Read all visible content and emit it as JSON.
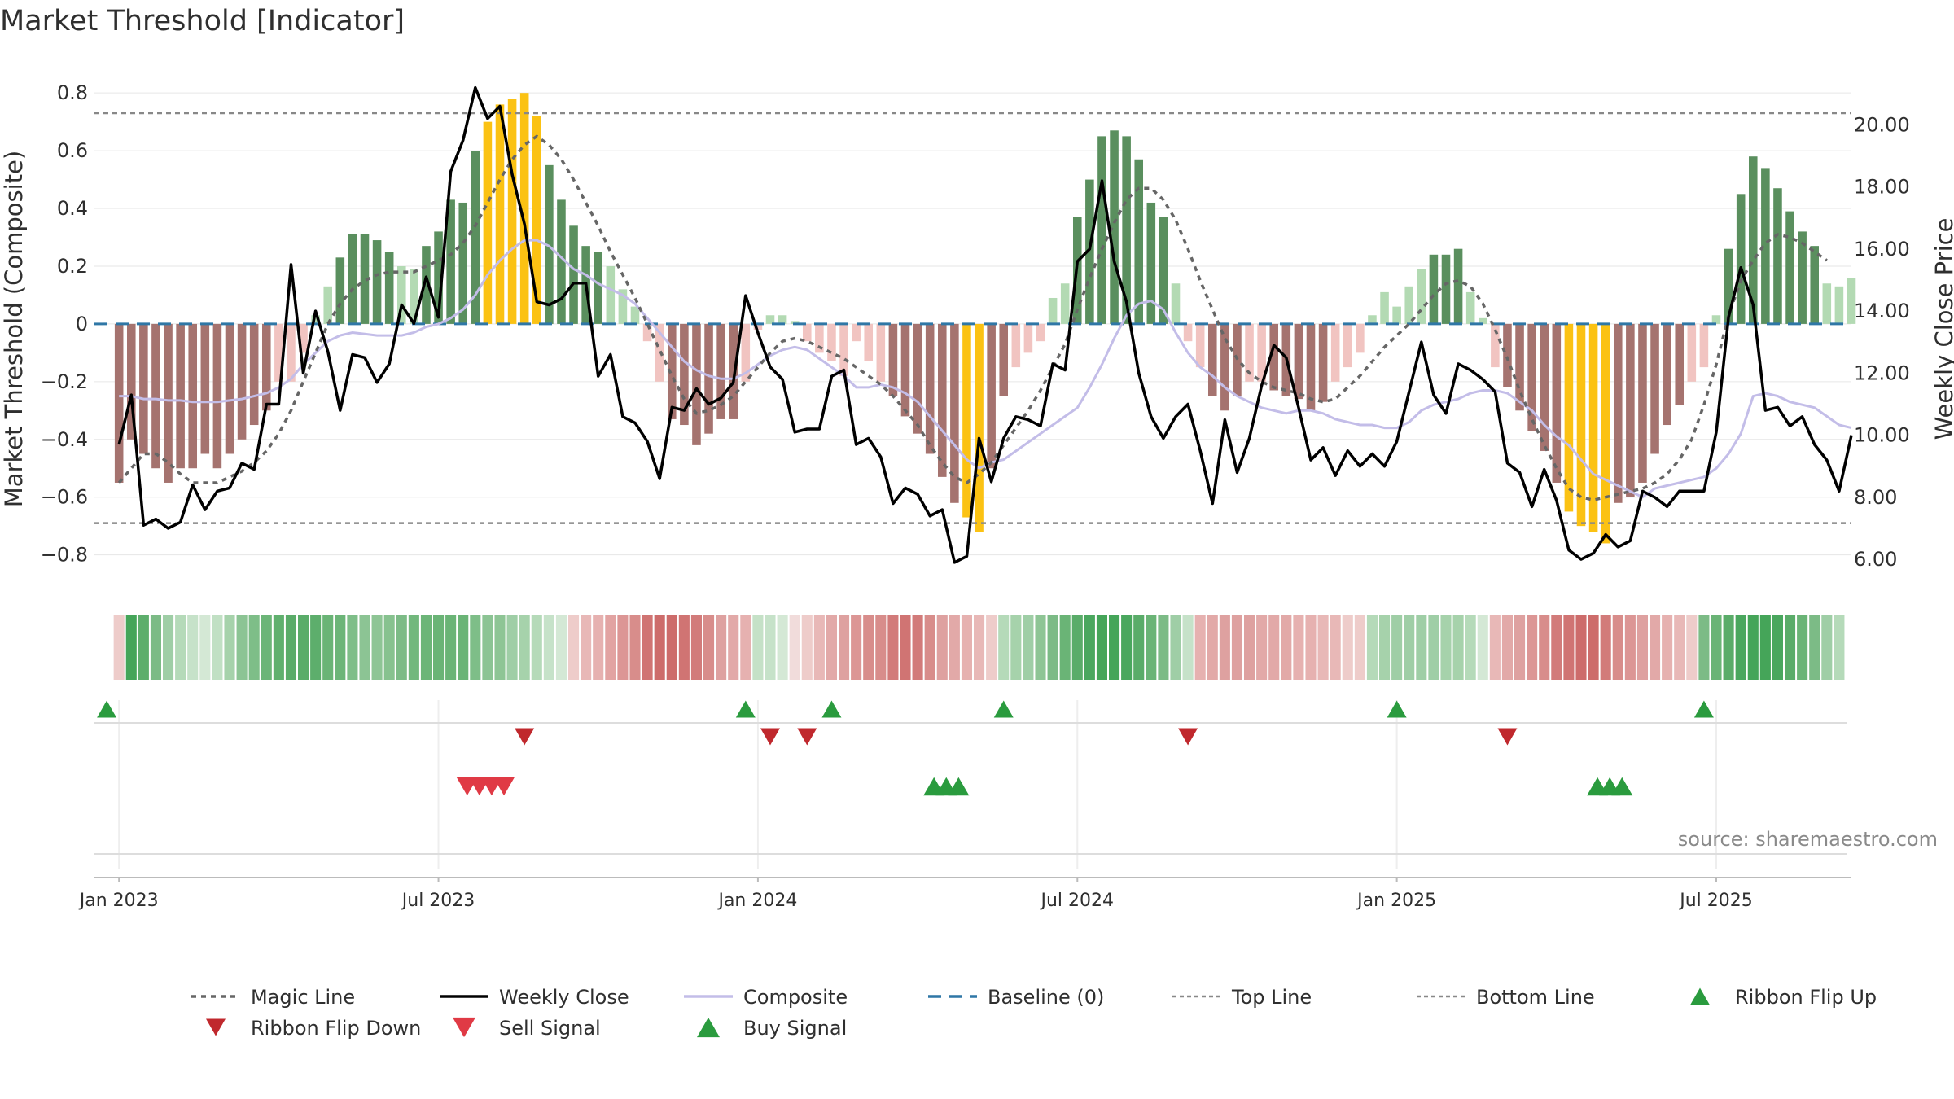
{
  "chart_data": {
    "type": "bar+line",
    "title": "Market Threshold [Indicator]",
    "ylabel_left": "Market Threshold (Composite)",
    "ylabel_right": "Weekly Close Price",
    "ylim_left": [
      -0.88,
      0.84
    ],
    "ylim_right": [
      5.4,
      21.4
    ],
    "left_ticks": [
      "0.8",
      "0.6",
      "0.4",
      "0.2",
      "0",
      "−0.2",
      "−0.4",
      "−0.6",
      "−0.8"
    ],
    "left_tick_values": [
      0.8,
      0.6,
      0.4,
      0.2,
      0,
      -0.2,
      -0.4,
      -0.6,
      -0.8
    ],
    "right_ticks": [
      "20.00",
      "18.00",
      "16.00",
      "14.00",
      "12.00",
      "10.00",
      "8.00",
      "6.00"
    ],
    "right_tick_values": [
      20,
      18,
      16,
      14,
      12,
      10,
      8,
      6
    ],
    "x_labels": [
      "Jan 2023",
      "Jul 2023",
      "Jan 2024",
      "Jul 2024",
      "Jan 2025",
      "Jul 2025"
    ],
    "x_label_weeks": [
      0,
      26,
      52,
      78,
      104,
      130
    ],
    "x_start_week": -2,
    "x_end_week": 141,
    "top_line": 0.73,
    "bottom_line": -0.69,
    "baseline": 0,
    "composite_bars": [
      -0.55,
      -0.4,
      -0.45,
      -0.5,
      -0.55,
      -0.5,
      -0.5,
      -0.45,
      -0.5,
      -0.45,
      -0.4,
      -0.35,
      -0.3,
      -0.2,
      -0.2,
      -0.1,
      0.03,
      0.13,
      0.23,
      0.31,
      0.31,
      0.29,
      0.25,
      0.2,
      0.19,
      0.27,
      0.32,
      0.43,
      0.42,
      0.6,
      0.7,
      0.76,
      0.78,
      0.8,
      0.72,
      0.55,
      0.43,
      0.34,
      0.27,
      0.25,
      0.2,
      0.12,
      0.06,
      -0.06,
      -0.2,
      -0.33,
      -0.35,
      -0.42,
      -0.38,
      -0.33,
      -0.33,
      -0.2,
      -0.02,
      0.03,
      0.03,
      0.01,
      -0.06,
      -0.1,
      -0.13,
      -0.18,
      -0.06,
      -0.13,
      -0.2,
      -0.25,
      -0.32,
      -0.38,
      -0.45,
      -0.53,
      -0.62,
      -0.67,
      -0.72,
      -0.5,
      -0.25,
      -0.15,
      -0.1,
      -0.06,
      0.09,
      0.14,
      0.37,
      0.5,
      0.65,
      0.67,
      0.65,
      0.57,
      0.42,
      0.37,
      0.14,
      -0.06,
      -0.15,
      -0.25,
      -0.3,
      -0.25,
      -0.2,
      -0.2,
      -0.23,
      -0.25,
      -0.26,
      -0.3,
      -0.27,
      -0.2,
      -0.15,
      -0.1,
      0.03,
      0.11,
      0.06,
      0.13,
      0.19,
      0.24,
      0.24,
      0.26,
      0.11,
      0.02,
      -0.15,
      -0.22,
      -0.3,
      -0.37,
      -0.44,
      -0.55,
      -0.65,
      -0.7,
      -0.72,
      -0.76,
      -0.62,
      -0.6,
      -0.55,
      -0.45,
      -0.35,
      -0.28,
      -0.2,
      -0.15,
      0.03,
      0.26,
      0.45,
      0.58,
      0.54,
      0.47,
      0.39,
      0.32,
      0.27,
      0.14,
      0.13,
      0.16
    ],
    "weekly_close": [
      9.7,
      11.3,
      7.1,
      7.3,
      7.0,
      7.2,
      8.4,
      7.6,
      8.2,
      8.3,
      9.1,
      8.9,
      11.0,
      11.0,
      15.5,
      12.0,
      14.0,
      12.7,
      10.8,
      12.6,
      12.5,
      11.7,
      12.3,
      14.2,
      13.6,
      15.1,
      13.8,
      18.5,
      19.5,
      21.2,
      20.2,
      20.6,
      18.4,
      16.8,
      14.3,
      14.2,
      14.4,
      14.9,
      14.9,
      11.9,
      12.6,
      10.6,
      10.4,
      9.8,
      8.6,
      10.9,
      10.8,
      11.5,
      11.0,
      11.2,
      11.7,
      14.5,
      13.3,
      12.2,
      11.8,
      10.1,
      10.2,
      10.2,
      11.9,
      12.1,
      9.7,
      9.9,
      9.3,
      7.8,
      8.3,
      8.1,
      7.4,
      7.6,
      5.9,
      6.1,
      9.9,
      8.5,
      9.9,
      10.6,
      10.5,
      10.3,
      12.3,
      12.1,
      15.6,
      16.0,
      18.2,
      15.6,
      14.3,
      12.0,
      10.6,
      9.9,
      10.6,
      11.0,
      9.5,
      7.8,
      10.5,
      8.8,
      9.9,
      11.6,
      12.9,
      12.5,
      10.9,
      9.2,
      9.6,
      8.7,
      9.5,
      9.0,
      9.4,
      9.0,
      9.8,
      11.4,
      13.0,
      11.3,
      10.7,
      12.3,
      12.1,
      11.8,
      11.4,
      9.1,
      8.8,
      7.7,
      8.9,
      7.9,
      6.3,
      6.0,
      6.2,
      6.8,
      6.4,
      6.6,
      8.2,
      8.0,
      7.7,
      8.2,
      8.2,
      8.2,
      10.1,
      13.8,
      15.4,
      14.2,
      10.8,
      10.9,
      10.3,
      10.6,
      9.7,
      9.2,
      8.2,
      10.0
    ],
    "composite_line": [
      -0.25,
      -0.25,
      -0.26,
      -0.26,
      -0.265,
      -0.265,
      -0.27,
      -0.27,
      -0.27,
      -0.265,
      -0.26,
      -0.25,
      -0.24,
      -0.22,
      -0.19,
      -0.14,
      -0.1,
      -0.06,
      -0.04,
      -0.03,
      -0.035,
      -0.04,
      -0.04,
      -0.04,
      -0.03,
      -0.01,
      0.0,
      0.02,
      0.05,
      0.1,
      0.17,
      0.22,
      0.26,
      0.29,
      0.29,
      0.27,
      0.23,
      0.19,
      0.17,
      0.14,
      0.12,
      0.1,
      0.07,
      0.02,
      -0.03,
      -0.08,
      -0.13,
      -0.16,
      -0.18,
      -0.19,
      -0.19,
      -0.17,
      -0.14,
      -0.11,
      -0.09,
      -0.08,
      -0.09,
      -0.12,
      -0.15,
      -0.18,
      -0.22,
      -0.22,
      -0.21,
      -0.22,
      -0.24,
      -0.27,
      -0.32,
      -0.37,
      -0.42,
      -0.47,
      -0.5,
      -0.48,
      -0.47,
      -0.44,
      -0.41,
      -0.38,
      -0.35,
      -0.32,
      -0.29,
      -0.22,
      -0.14,
      -0.05,
      0.03,
      0.07,
      0.08,
      0.05,
      -0.03,
      -0.1,
      -0.15,
      -0.18,
      -0.22,
      -0.25,
      -0.27,
      -0.29,
      -0.3,
      -0.31,
      -0.3,
      -0.3,
      -0.31,
      -0.33,
      -0.34,
      -0.35,
      -0.35,
      -0.36,
      -0.36,
      -0.34,
      -0.3,
      -0.28,
      -0.27,
      -0.26,
      -0.24,
      -0.23,
      -0.23,
      -0.24,
      -0.27,
      -0.3,
      -0.35,
      -0.39,
      -0.42,
      -0.47,
      -0.52,
      -0.54,
      -0.56,
      -0.58,
      -0.6,
      -0.57,
      -0.56,
      -0.55,
      -0.54,
      -0.53,
      -0.5,
      -0.45,
      -0.38,
      -0.25,
      -0.24,
      -0.25,
      -0.27,
      -0.28,
      -0.29,
      -0.32,
      -0.35,
      -0.36
    ],
    "magic_line": [
      -0.55,
      -0.5,
      -0.45,
      -0.45,
      -0.48,
      -0.52,
      -0.55,
      -0.55,
      -0.55,
      -0.53,
      -0.51,
      -0.48,
      -0.44,
      -0.38,
      -0.3,
      -0.2,
      -0.1,
      0.0,
      0.07,
      0.12,
      0.15,
      0.17,
      0.18,
      0.18,
      0.18,
      0.2,
      0.22,
      0.24,
      0.28,
      0.34,
      0.42,
      0.5,
      0.57,
      0.62,
      0.65,
      0.62,
      0.57,
      0.5,
      0.42,
      0.34,
      0.25,
      0.17,
      0.09,
      0.0,
      -0.09,
      -0.18,
      -0.26,
      -0.31,
      -0.3,
      -0.28,
      -0.25,
      -0.2,
      -0.15,
      -0.1,
      -0.06,
      -0.05,
      -0.06,
      -0.08,
      -0.1,
      -0.12,
      -0.15,
      -0.18,
      -0.21,
      -0.25,
      -0.3,
      -0.35,
      -0.42,
      -0.48,
      -0.53,
      -0.55,
      -0.52,
      -0.48,
      -0.42,
      -0.36,
      -0.3,
      -0.23,
      -0.15,
      -0.07,
      0.05,
      0.16,
      0.26,
      0.35,
      0.43,
      0.47,
      0.47,
      0.43,
      0.36,
      0.26,
      0.15,
      0.05,
      -0.05,
      -0.12,
      -0.17,
      -0.2,
      -0.22,
      -0.23,
      -0.24,
      -0.26,
      -0.27,
      -0.26,
      -0.22,
      -0.18,
      -0.13,
      -0.08,
      -0.04,
      0.0,
      0.05,
      0.1,
      0.14,
      0.15,
      0.13,
      0.07,
      -0.02,
      -0.12,
      -0.23,
      -0.33,
      -0.42,
      -0.5,
      -0.57,
      -0.6,
      -0.61,
      -0.6,
      -0.59,
      -0.58,
      -0.57,
      -0.55,
      -0.52,
      -0.47,
      -0.4,
      -0.28,
      -0.14,
      0.03,
      0.15,
      0.22,
      0.28,
      0.31,
      0.3,
      0.28,
      0.25,
      0.22
    ],
    "ribbon_colors": [
      "#eeccca",
      "#45a559",
      "#5dae6c",
      "#7cbb86",
      "#9fcea6",
      "#b5dab9",
      "#c6e2c9",
      "#d4e8d5",
      "#c1e0c4",
      "#a6d2ab",
      "#8cc494",
      "#7ebe88",
      "#6cb578",
      "#60b06e",
      "#5aac69",
      "#5aac69",
      "#5dae6c",
      "#6ab476",
      "#6cb578",
      "#7ebe88",
      "#8cc494",
      "#8ec595",
      "#87c28f",
      "#7cbb86",
      "#72b87d",
      "#6cb578",
      "#6ab476",
      "#6ab476",
      "#6ab476",
      "#7ebe88",
      "#8cc494",
      "#8ec595",
      "#9fcea6",
      "#a6d2ab",
      "#b5dab9",
      "#c6e2c9",
      "#d4e8d5",
      "#eeccca",
      "#e8b8b7",
      "#e6b1b0",
      "#e2a3a2",
      "#dc9695",
      "#d88d8b",
      "#d07473",
      "#cd6c6b",
      "#cd6c6b",
      "#d07473",
      "#d27b7a",
      "#d88d8b",
      "#dea1a0",
      "#e2a9a8",
      "#e6b1b0",
      "#c5e1c7",
      "#c6e2c9",
      "#d4e8d5",
      "#f1dcdb",
      "#eeccca",
      "#e8b8b7",
      "#e2a9a8",
      "#dea1a0",
      "#dc9695",
      "#d88d8b",
      "#d88d8b",
      "#d27b7a",
      "#d07473",
      "#d27b7a",
      "#d88d8b",
      "#dea1a0",
      "#e2a9a8",
      "#e6b1b0",
      "#e8b8b7",
      "#eeccca",
      "#b5dab9",
      "#a6d2ab",
      "#9fcea6",
      "#8ec595",
      "#7cbb86",
      "#6ab476",
      "#5aac69",
      "#4aa75e",
      "#45a559",
      "#45a559",
      "#4aa75e",
      "#5aac69",
      "#6ab476",
      "#7cbb86",
      "#9fcea6",
      "#c6e2c9",
      "#e6b1b0",
      "#e2a9a8",
      "#dea1a0",
      "#dea1a0",
      "#dea1a0",
      "#e2a9a8",
      "#e2a9a8",
      "#e2a9a8",
      "#e6b1b0",
      "#e6b1b0",
      "#e8b8b7",
      "#e8b8b7",
      "#eeccca",
      "#eeccca",
      "#b5dab9",
      "#a6d2ab",
      "#9fcea6",
      "#9fcea6",
      "#9fcea6",
      "#9fcea6",
      "#a6d2ab",
      "#a6d2ab",
      "#b5dab9",
      "#d4e8d5",
      "#e8b8b7",
      "#e2a9a8",
      "#dea1a0",
      "#dc9695",
      "#d88d8b",
      "#d27b7a",
      "#d07473",
      "#cd6c6b",
      "#cd6c6b",
      "#d27b7a",
      "#d88d8b",
      "#dc9695",
      "#dea1a0",
      "#e2a9a8",
      "#e6b1b0",
      "#e8b8b7",
      "#eeccca",
      "#7cbb86",
      "#6ab476",
      "#5aac69",
      "#4aa75e",
      "#45a559",
      "#45a559",
      "#4aa75e",
      "#5aac69",
      "#6ab476",
      "#7cbb86",
      "#9fcea6",
      "#b5dab9"
    ],
    "ribbon_flip_up_weeks": [
      -1,
      51,
      58,
      72,
      104,
      129
    ],
    "ribbon_flip_down_weeks": [
      33,
      53,
      56,
      87,
      113
    ],
    "sell_signal_weeks": [
      28,
      29,
      30,
      31
    ],
    "buy_signal_weeks": [
      66,
      67,
      68,
      120,
      121,
      122
    ],
    "source": "source: sharemaestro.com",
    "legend": [
      {
        "label": "Magic Line",
        "style": "dotted",
        "color": "#666666"
      },
      {
        "label": "Weekly Close",
        "style": "solid",
        "color": "#000000"
      },
      {
        "label": "Composite",
        "style": "solid",
        "color": "#c3bde8"
      },
      {
        "label": "Baseline (0)",
        "style": "dashed",
        "color": "#2f77a6"
      },
      {
        "label": "Top Line",
        "style": "dotted-light",
        "color": "#888888"
      },
      {
        "label": "Bottom Line",
        "style": "dotted-light",
        "color": "#888888"
      },
      {
        "label": "Ribbon Flip Up",
        "style": "triangle-up",
        "color": "#2a9b3e"
      },
      {
        "label": "Ribbon Flip Down",
        "style": "triangle-down",
        "color": "#c0282d"
      },
      {
        "label": "Sell Signal",
        "style": "triangle-down",
        "color": "#e03a45"
      },
      {
        "label": "Buy Signal",
        "style": "triangle-up",
        "color": "#2a9b3e"
      }
    ],
    "colors": {
      "bar_pos_strong": "#5a8f5e",
      "bar_pos_light": "#b3dab3",
      "bar_neg_strong": "#a5736f",
      "bar_neg_light": "#f1c4c1",
      "bar_extreme": "#fbc213",
      "grid": "#e6e6e6",
      "axis": "#cccccc"
    }
  }
}
